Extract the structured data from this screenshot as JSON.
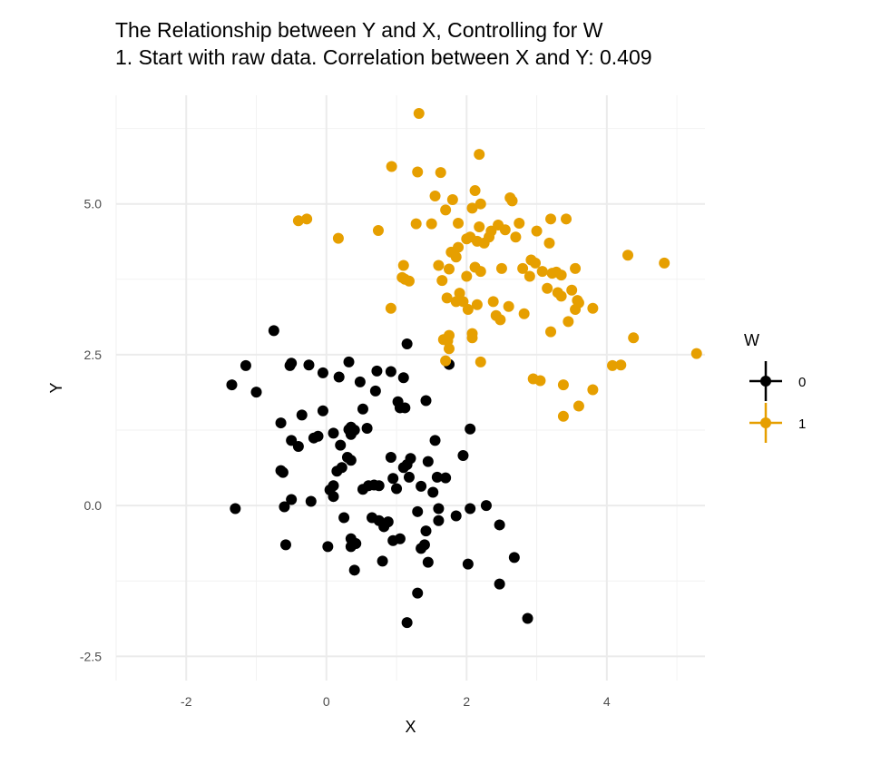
{
  "chart_data": {
    "type": "scatter",
    "title": "The Relationship between Y and X, Controlling for W",
    "subtitle": "1. Start with raw data. Correlation between X and Y: 0.409",
    "xlabel": "X",
    "ylabel": "Y",
    "xlim": [
      -3,
      5.4
    ],
    "ylim": [
      -2.9,
      6.8
    ],
    "xticks": [
      -2,
      0,
      2,
      4
    ],
    "yticks": [
      -2.5,
      0.0,
      2.5,
      5.0
    ],
    "xtick_labels": [
      "-2",
      "0",
      "2",
      "4"
    ],
    "ytick_labels": [
      "-2.5",
      "0.0",
      "2.5",
      "5.0"
    ],
    "grid": true,
    "legend_position": "right",
    "legend_title": "W",
    "series": [
      {
        "name": "0",
        "color": "#000000",
        "points": [
          [
            -1.35,
            2.0
          ],
          [
            -1.3,
            -0.05
          ],
          [
            -1.15,
            2.32
          ],
          [
            -1.0,
            1.88
          ],
          [
            -0.75,
            2.9
          ],
          [
            -0.65,
            1.37
          ],
          [
            -0.65,
            0.58
          ],
          [
            -0.62,
            0.55
          ],
          [
            -0.6,
            -0.02
          ],
          [
            -0.58,
            -0.65
          ],
          [
            -0.52,
            2.32
          ],
          [
            -0.5,
            2.36
          ],
          [
            -0.5,
            1.08
          ],
          [
            -0.5,
            0.1
          ],
          [
            -0.4,
            0.98
          ],
          [
            -0.35,
            1.5
          ],
          [
            -0.25,
            2.33
          ],
          [
            -0.22,
            0.07
          ],
          [
            -0.18,
            1.12
          ],
          [
            -0.12,
            1.15
          ],
          [
            -0.05,
            2.2
          ],
          [
            -0.05,
            1.57
          ],
          [
            0.02,
            -0.68
          ],
          [
            0.05,
            0.26
          ],
          [
            0.1,
            1.2
          ],
          [
            0.1,
            0.33
          ],
          [
            0.1,
            0.15
          ],
          [
            0.15,
            0.57
          ],
          [
            0.18,
            2.13
          ],
          [
            0.2,
            1.0
          ],
          [
            0.22,
            0.63
          ],
          [
            0.25,
            -0.2
          ],
          [
            0.3,
            0.8
          ],
          [
            0.32,
            2.38
          ],
          [
            0.32,
            1.26
          ],
          [
            0.35,
            1.3
          ],
          [
            0.35,
            1.18
          ],
          [
            0.35,
            0.75
          ],
          [
            0.35,
            -0.55
          ],
          [
            0.35,
            -0.68
          ],
          [
            0.4,
            1.25
          ],
          [
            0.4,
            -1.07
          ],
          [
            0.42,
            -0.63
          ],
          [
            0.48,
            2.05
          ],
          [
            0.52,
            0.27
          ],
          [
            0.52,
            1.6
          ],
          [
            0.58,
            1.28
          ],
          [
            0.6,
            0.33
          ],
          [
            0.65,
            -0.2
          ],
          [
            0.68,
            0.34
          ],
          [
            0.7,
            1.9
          ],
          [
            0.72,
            2.23
          ],
          [
            0.75,
            0.33
          ],
          [
            0.75,
            -0.25
          ],
          [
            0.8,
            -0.92
          ],
          [
            0.82,
            -0.35
          ],
          [
            0.88,
            -0.27
          ],
          [
            0.92,
            2.22
          ],
          [
            0.92,
            0.8
          ],
          [
            0.95,
            0.45
          ],
          [
            0.95,
            -0.58
          ],
          [
            1.0,
            0.28
          ],
          [
            1.02,
            1.72
          ],
          [
            1.05,
            -0.55
          ],
          [
            1.05,
            1.62
          ],
          [
            1.1,
            0.63
          ],
          [
            1.1,
            2.12
          ],
          [
            1.12,
            1.62
          ],
          [
            1.15,
            2.68
          ],
          [
            1.15,
            0.68
          ],
          [
            1.15,
            -1.94
          ],
          [
            1.18,
            0.47
          ],
          [
            1.2,
            0.78
          ],
          [
            1.3,
            -1.45
          ],
          [
            1.3,
            -0.1
          ],
          [
            1.35,
            0.32
          ],
          [
            1.35,
            -0.71
          ],
          [
            1.4,
            -0.65
          ],
          [
            1.42,
            -0.42
          ],
          [
            1.42,
            1.74
          ],
          [
            1.45,
            0.73
          ],
          [
            1.45,
            -0.94
          ],
          [
            1.52,
            0.22
          ],
          [
            1.55,
            1.08
          ],
          [
            1.58,
            0.47
          ],
          [
            1.6,
            -0.05
          ],
          [
            1.6,
            -0.25
          ],
          [
            1.7,
            0.46
          ],
          [
            1.75,
            2.34
          ],
          [
            1.85,
            -0.17
          ],
          [
            1.95,
            0.83
          ],
          [
            2.02,
            -0.97
          ],
          [
            2.05,
            1.27
          ],
          [
            2.05,
            -0.05
          ],
          [
            2.28,
            0.0
          ],
          [
            2.47,
            -0.32
          ],
          [
            2.47,
            -1.3
          ],
          [
            2.68,
            -0.86
          ],
          [
            2.87,
            -1.87
          ]
        ]
      },
      {
        "name": "1",
        "color": "#e69f00",
        "points": [
          [
            -0.4,
            4.72
          ],
          [
            -0.28,
            4.75
          ],
          [
            0.17,
            4.43
          ],
          [
            0.74,
            4.56
          ],
          [
            0.92,
            3.27
          ],
          [
            0.93,
            5.62
          ],
          [
            1.08,
            3.78
          ],
          [
            1.1,
            3.98
          ],
          [
            1.18,
            3.72
          ],
          [
            1.28,
            4.67
          ],
          [
            1.3,
            5.53
          ],
          [
            1.32,
            6.5
          ],
          [
            1.5,
            4.67
          ],
          [
            1.55,
            5.13
          ],
          [
            1.6,
            3.98
          ],
          [
            1.63,
            5.52
          ],
          [
            1.65,
            3.73
          ],
          [
            1.67,
            2.75
          ],
          [
            1.7,
            2.4
          ],
          [
            1.7,
            4.9
          ],
          [
            1.72,
            3.44
          ],
          [
            1.73,
            2.73
          ],
          [
            1.75,
            3.92
          ],
          [
            1.75,
            2.82
          ],
          [
            1.75,
            2.6
          ],
          [
            1.78,
            4.2
          ],
          [
            1.8,
            5.07
          ],
          [
            1.85,
            4.12
          ],
          [
            1.85,
            3.38
          ],
          [
            1.88,
            4.28
          ],
          [
            1.88,
            4.68
          ],
          [
            1.9,
            3.52
          ],
          [
            1.95,
            3.38
          ],
          [
            2.0,
            3.8
          ],
          [
            2.0,
            4.42
          ],
          [
            2.02,
            3.25
          ],
          [
            2.05,
            4.45
          ],
          [
            2.08,
            2.78
          ],
          [
            2.08,
            2.85
          ],
          [
            2.08,
            4.93
          ],
          [
            2.12,
            5.22
          ],
          [
            2.12,
            3.95
          ],
          [
            2.15,
            4.38
          ],
          [
            2.15,
            3.33
          ],
          [
            2.18,
            4.62
          ],
          [
            2.18,
            5.82
          ],
          [
            2.2,
            3.88
          ],
          [
            2.2,
            2.38
          ],
          [
            2.2,
            5.0
          ],
          [
            2.25,
            4.35
          ],
          [
            2.32,
            4.45
          ],
          [
            2.35,
            4.55
          ],
          [
            2.38,
            3.38
          ],
          [
            2.42,
            3.15
          ],
          [
            2.45,
            4.65
          ],
          [
            2.48,
            3.08
          ],
          [
            2.5,
            3.93
          ],
          [
            2.55,
            4.57
          ],
          [
            2.6,
            3.3
          ],
          [
            2.62,
            5.1
          ],
          [
            2.65,
            5.05
          ],
          [
            2.7,
            4.45
          ],
          [
            2.75,
            4.68
          ],
          [
            2.8,
            3.93
          ],
          [
            2.82,
            3.18
          ],
          [
            2.9,
            3.8
          ],
          [
            2.92,
            4.07
          ],
          [
            2.95,
            2.1
          ],
          [
            2.98,
            4.02
          ],
          [
            3.0,
            4.55
          ],
          [
            3.05,
            2.07
          ],
          [
            3.08,
            3.88
          ],
          [
            3.15,
            3.6
          ],
          [
            3.18,
            4.35
          ],
          [
            3.2,
            2.88
          ],
          [
            3.2,
            4.75
          ],
          [
            3.22,
            3.85
          ],
          [
            3.28,
            3.87
          ],
          [
            3.3,
            3.53
          ],
          [
            3.35,
            3.47
          ],
          [
            3.35,
            3.82
          ],
          [
            3.38,
            2.0
          ],
          [
            3.38,
            1.48
          ],
          [
            3.42,
            4.75
          ],
          [
            3.45,
            3.05
          ],
          [
            3.5,
            3.57
          ],
          [
            3.55,
            3.93
          ],
          [
            3.55,
            3.25
          ],
          [
            3.6,
            3.36
          ],
          [
            3.6,
            1.65
          ],
          [
            3.8,
            3.27
          ],
          [
            3.8,
            1.92
          ],
          [
            4.08,
            2.32
          ],
          [
            4.2,
            2.33
          ],
          [
            4.3,
            4.15
          ],
          [
            4.38,
            2.78
          ],
          [
            4.82,
            4.02
          ],
          [
            5.28,
            2.52
          ],
          [
            3.58,
            3.4
          ],
          [
            1.12,
            3.75
          ]
        ]
      }
    ]
  }
}
